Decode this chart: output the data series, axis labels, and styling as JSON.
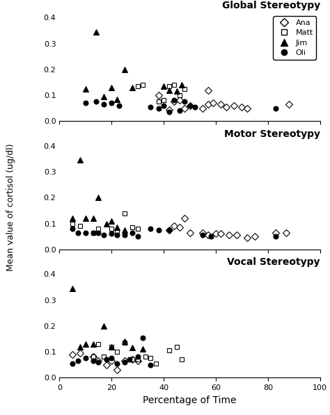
{
  "subplots": [
    {
      "title": "Global Stereotypy",
      "Ana": [
        [
          38,
          0.1
        ],
        [
          42,
          0.045
        ],
        [
          44,
          0.075
        ],
        [
          46,
          0.08
        ],
        [
          48,
          0.05
        ],
        [
          50,
          0.06
        ],
        [
          55,
          0.05
        ],
        [
          57,
          0.065
        ],
        [
          59,
          0.07
        ],
        [
          62,
          0.065
        ],
        [
          64,
          0.055
        ],
        [
          67,
          0.06
        ],
        [
          70,
          0.055
        ],
        [
          72,
          0.05
        ],
        [
          57,
          0.12
        ],
        [
          88,
          0.065
        ]
      ],
      "Matt": [
        [
          30,
          0.135
        ],
        [
          32,
          0.14
        ],
        [
          38,
          0.075
        ],
        [
          40,
          0.08
        ],
        [
          42,
          0.135
        ],
        [
          44,
          0.14
        ],
        [
          46,
          0.1
        ],
        [
          48,
          0.125
        ]
      ],
      "Jim": [
        [
          14,
          0.345
        ],
        [
          10,
          0.125
        ],
        [
          17,
          0.095
        ],
        [
          20,
          0.13
        ],
        [
          22,
          0.085
        ],
        [
          25,
          0.2
        ],
        [
          28,
          0.13
        ],
        [
          40,
          0.135
        ],
        [
          42,
          0.12
        ],
        [
          45,
          0.115
        ],
        [
          47,
          0.14
        ]
      ],
      "Oli": [
        [
          10,
          0.07
        ],
        [
          14,
          0.075
        ],
        [
          17,
          0.065
        ],
        [
          20,
          0.07
        ],
        [
          23,
          0.06
        ],
        [
          35,
          0.055
        ],
        [
          38,
          0.05
        ],
        [
          40,
          0.06
        ],
        [
          42,
          0.035
        ],
        [
          44,
          0.08
        ],
        [
          46,
          0.04
        ],
        [
          48,
          0.075
        ],
        [
          50,
          0.06
        ],
        [
          52,
          0.055
        ],
        [
          83,
          0.05
        ]
      ]
    },
    {
      "title": "Motor Stereotypy",
      "Ana": [
        [
          42,
          0.075
        ],
        [
          44,
          0.09
        ],
        [
          46,
          0.085
        ],
        [
          48,
          0.12
        ],
        [
          50,
          0.065
        ],
        [
          55,
          0.065
        ],
        [
          57,
          0.055
        ],
        [
          60,
          0.06
        ],
        [
          62,
          0.06
        ],
        [
          65,
          0.055
        ],
        [
          68,
          0.055
        ],
        [
          72,
          0.045
        ],
        [
          75,
          0.05
        ],
        [
          83,
          0.065
        ],
        [
          87,
          0.065
        ]
      ],
      "Matt": [
        [
          5,
          0.1
        ],
        [
          8,
          0.09
        ],
        [
          13,
          0.065
        ],
        [
          15,
          0.08
        ],
        [
          20,
          0.08
        ],
        [
          22,
          0.07
        ],
        [
          25,
          0.14
        ],
        [
          28,
          0.085
        ],
        [
          30,
          0.08
        ]
      ],
      "Jim": [
        [
          5,
          0.12
        ],
        [
          8,
          0.345
        ],
        [
          10,
          0.12
        ],
        [
          13,
          0.12
        ],
        [
          15,
          0.2
        ],
        [
          18,
          0.1
        ],
        [
          20,
          0.11
        ],
        [
          22,
          0.085
        ],
        [
          25,
          0.075
        ]
      ],
      "Oli": [
        [
          5,
          0.08
        ],
        [
          7,
          0.065
        ],
        [
          10,
          0.065
        ],
        [
          13,
          0.065
        ],
        [
          15,
          0.065
        ],
        [
          17,
          0.055
        ],
        [
          20,
          0.06
        ],
        [
          22,
          0.055
        ],
        [
          25,
          0.055
        ],
        [
          28,
          0.065
        ],
        [
          30,
          0.05
        ],
        [
          35,
          0.08
        ],
        [
          38,
          0.075
        ],
        [
          42,
          0.075
        ],
        [
          55,
          0.055
        ],
        [
          58,
          0.05
        ],
        [
          83,
          0.05
        ]
      ]
    },
    {
      "title": "Vocal Stereotypy",
      "Ana": [
        [
          5,
          0.09
        ],
        [
          8,
          0.095
        ],
        [
          13,
          0.08
        ],
        [
          15,
          0.065
        ],
        [
          18,
          0.05
        ],
        [
          20,
          0.065
        ],
        [
          22,
          0.03
        ],
        [
          25,
          0.065
        ],
        [
          28,
          0.07
        ],
        [
          30,
          0.065
        ]
      ],
      "Matt": [
        [
          13,
          0.08
        ],
        [
          15,
          0.13
        ],
        [
          17,
          0.08
        ],
        [
          20,
          0.12
        ],
        [
          22,
          0.1
        ],
        [
          25,
          0.135
        ],
        [
          28,
          0.07
        ],
        [
          30,
          0.07
        ],
        [
          33,
          0.08
        ],
        [
          35,
          0.075
        ],
        [
          37,
          0.055
        ],
        [
          42,
          0.105
        ],
        [
          45,
          0.12
        ],
        [
          47,
          0.07
        ]
      ],
      "Jim": [
        [
          5,
          0.345
        ],
        [
          8,
          0.12
        ],
        [
          10,
          0.13
        ],
        [
          13,
          0.13
        ],
        [
          17,
          0.2
        ],
        [
          20,
          0.12
        ],
        [
          25,
          0.14
        ],
        [
          28,
          0.115
        ],
        [
          32,
          0.11
        ]
      ],
      "Oli": [
        [
          5,
          0.055
        ],
        [
          7,
          0.065
        ],
        [
          10,
          0.075
        ],
        [
          13,
          0.065
        ],
        [
          15,
          0.06
        ],
        [
          18,
          0.07
        ],
        [
          20,
          0.075
        ],
        [
          22,
          0.055
        ],
        [
          25,
          0.06
        ],
        [
          27,
          0.07
        ],
        [
          30,
          0.08
        ],
        [
          32,
          0.155
        ],
        [
          35,
          0.05
        ]
      ]
    }
  ],
  "ylabel": "Mean value of cortisol (ug/dl)",
  "xlabel": "Percentage of Time",
  "xlim": [
    0,
    100
  ],
  "ylim": [
    0.0,
    0.42
  ],
  "yticks": [
    0.0,
    0.1,
    0.2,
    0.3,
    0.4
  ],
  "xticks": [
    0,
    20,
    40,
    60,
    80,
    100
  ],
  "background_color": "#ffffff"
}
